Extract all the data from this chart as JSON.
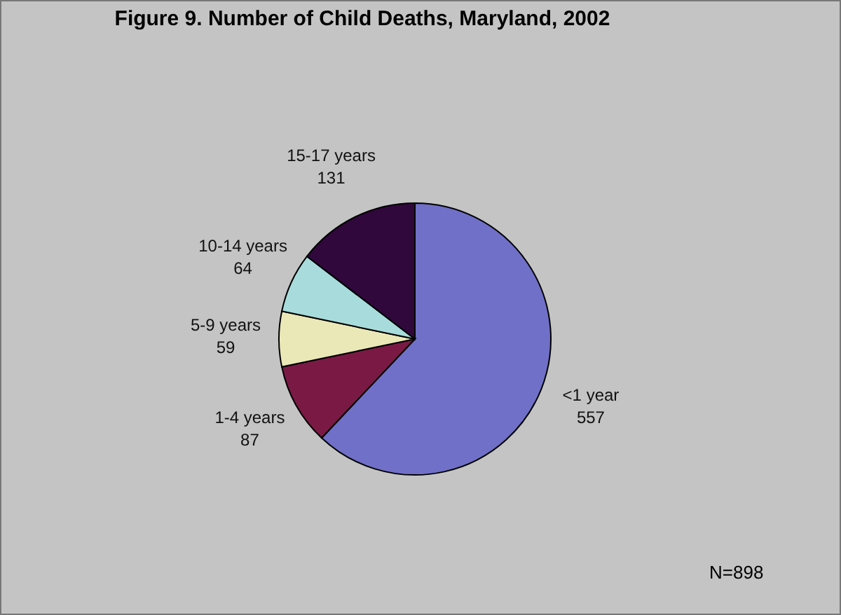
{
  "chart_data": {
    "type": "pie",
    "title": "Figure 9. Number of Child Deaths, Maryland, 2002",
    "categories": [
      "<1 year",
      "1-4 years",
      "5-9 years",
      "10-14 years",
      "15-17 years"
    ],
    "values": [
      557,
      87,
      59,
      64,
      131
    ],
    "colors": [
      "#7070c8",
      "#7a1a44",
      "#ebe8b8",
      "#a8dcdc",
      "#30083c"
    ],
    "data_labels": true,
    "annotations": [
      "N=898"
    ]
  }
}
